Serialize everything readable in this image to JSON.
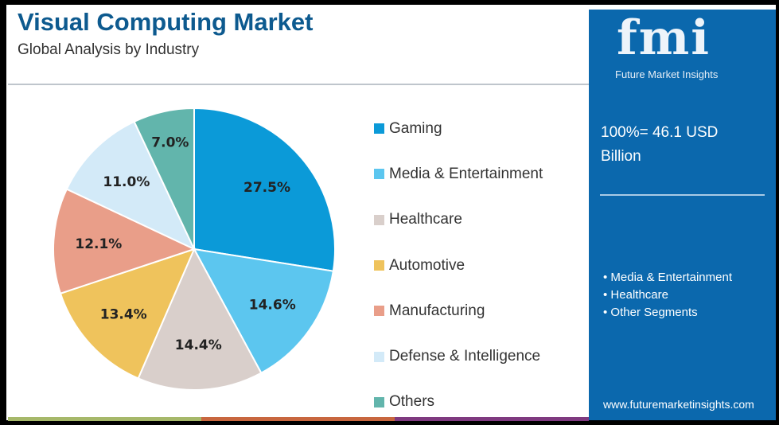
{
  "header": {
    "title": "Visual Computing Market",
    "subtitle": "Global Analysis by Industry"
  },
  "chart_data": {
    "type": "pie",
    "title": "Visual Computing Market",
    "subtitle": "Global Analysis by Industry",
    "categories": [
      "Gaming",
      "Media & Entertainment",
      "Healthcare",
      "Automotive",
      "Manufacturing",
      "Defense & Intelligence",
      "Others"
    ],
    "values": [
      27.5,
      14.6,
      14.4,
      13.4,
      12.1,
      11.0,
      7.0
    ],
    "labels": [
      "27.5%",
      "14.6%",
      "14.4%",
      "13.4%",
      "12.1%",
      "11.0%",
      "7.0%"
    ],
    "colors": [
      "#0b9ad8",
      "#5cc6ef",
      "#d9cfcb",
      "#efc35c",
      "#e99e89",
      "#d3eaf8",
      "#62b5ac"
    ],
    "legend_position": "right"
  },
  "sidebar": {
    "logo_text": "fmi",
    "logo_subtitle": "Future Market Insights",
    "total": "100%= 46.1 USD Billion",
    "bullets": [
      "Media & Entertainment",
      "Healthcare",
      "Other Segments"
    ],
    "url": "www.futuremarketinsights.com",
    "background": "#0b68ad"
  }
}
